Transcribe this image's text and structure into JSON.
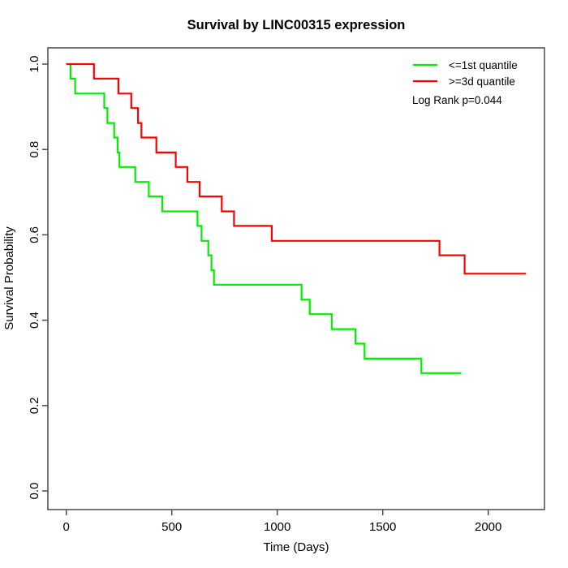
{
  "title": "Survival by LINC00315 expression",
  "chart_data": {
    "type": "line",
    "subtype": "kaplan-meier-step",
    "title": "Survival by LINC00315 expression",
    "xlabel": "Time (Days)",
    "ylabel": "Survival Probability",
    "xlim": [
      -90,
      2265
    ],
    "ylim": [
      -0.04,
      1.04
    ],
    "xticks": [
      "0",
      "500",
      "1000",
      "1500",
      "2000"
    ],
    "yticks": [
      "0.0",
      "0.2",
      "0.4",
      "0.6",
      "0.8",
      "1.0"
    ],
    "grid": false,
    "legend_position": "top-right",
    "annotation": "Log Rank p=0.044",
    "colors": {
      "low_group": "#00ee00",
      "high_group": "#ff0000",
      "frame": "#4a4a4a"
    },
    "series": [
      {
        "name": "<=1st quantile",
        "color": "#00ee00",
        "end_time": 1872,
        "steps": [
          [
            0,
            1.0
          ],
          [
            20,
            0.966
          ],
          [
            42,
            0.931
          ],
          [
            180,
            0.897
          ],
          [
            195,
            0.862
          ],
          [
            227,
            0.828
          ],
          [
            243,
            0.793
          ],
          [
            252,
            0.759
          ],
          [
            327,
            0.724
          ],
          [
            391,
            0.69
          ],
          [
            455,
            0.655
          ],
          [
            622,
            0.621
          ],
          [
            641,
            0.586
          ],
          [
            673,
            0.552
          ],
          [
            688,
            0.517
          ],
          [
            700,
            0.483
          ],
          [
            1115,
            0.448
          ],
          [
            1154,
            0.414
          ],
          [
            1258,
            0.379
          ],
          [
            1371,
            0.345
          ],
          [
            1414,
            0.31
          ],
          [
            1683,
            0.276
          ]
        ]
      },
      {
        "name": ">=3d quantile",
        "color": "#ff0000",
        "end_time": 2179,
        "steps": [
          [
            0,
            1.0
          ],
          [
            131,
            0.966
          ],
          [
            247,
            0.931
          ],
          [
            308,
            0.897
          ],
          [
            340,
            0.862
          ],
          [
            356,
            0.828
          ],
          [
            427,
            0.793
          ],
          [
            519,
            0.759
          ],
          [
            574,
            0.724
          ],
          [
            632,
            0.69
          ],
          [
            737,
            0.655
          ],
          [
            795,
            0.621
          ],
          [
            974,
            0.586
          ],
          [
            1769,
            0.552
          ],
          [
            1888,
            0.509
          ]
        ]
      }
    ]
  }
}
